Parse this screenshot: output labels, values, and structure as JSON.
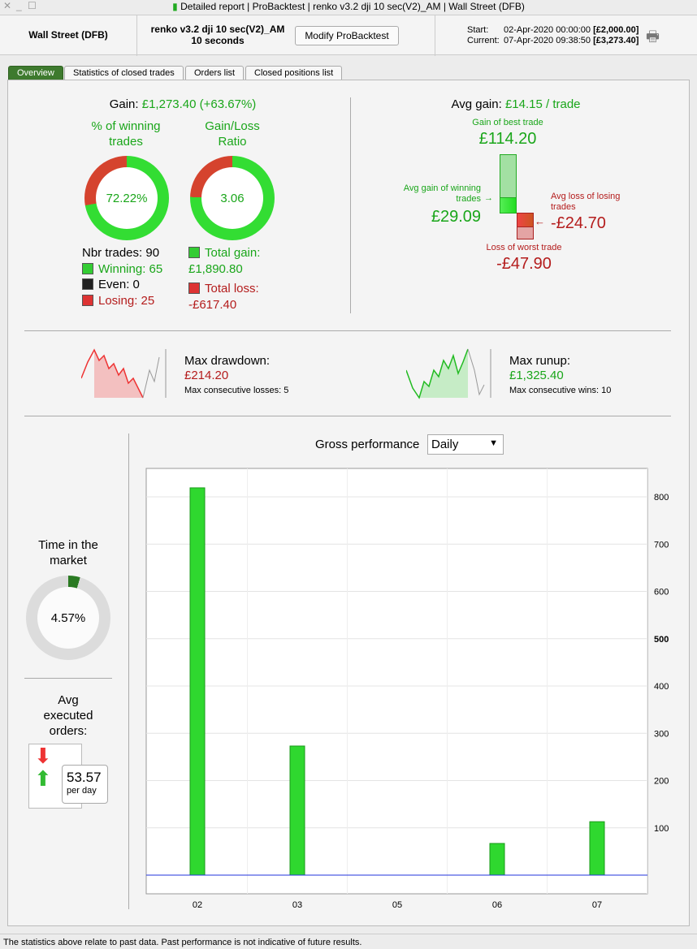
{
  "window": {
    "title": "Detailed report | ProBacktest | renko v3.2 dji 10 sec(V2)_AM | Wall Street (DFB)"
  },
  "header": {
    "instrument": "Wall Street (DFB)",
    "strategy": "renko v3.2 dji 10 sec(V2)_AM",
    "timeframe": "10 seconds",
    "modify_label": "Modify ProBacktest",
    "start_label": "Start:",
    "start_date": "02-Apr-2020 00:00:00",
    "start_value": "[£2,000.00]",
    "current_label": "Current:",
    "current_date": "07-Apr-2020 09:38:50",
    "current_value": "[£3,273.40]"
  },
  "tabs": [
    "Overview",
    "Statistics of closed trades",
    "Orders list",
    "Closed positions list"
  ],
  "gain": {
    "label": "Gain:",
    "value": "£1,273.40 (+63.67%)"
  },
  "winning": {
    "title": "% of winning trades",
    "pct": "72.22%",
    "fraction": 0.7222
  },
  "ratio": {
    "title": "Gain/Loss Ratio",
    "value": "3.06",
    "fraction": 0.754
  },
  "trades": {
    "nbr": "Nbr trades: 90",
    "winning": "Winning: 65",
    "even": "Even: 0",
    "losing": "Losing: 25"
  },
  "totals": {
    "gain_label": "Total gain:",
    "gain": "£1,890.80",
    "loss_label": "Total loss:",
    "loss": "-£617.40"
  },
  "avg": {
    "label": "Avg gain:",
    "value": "£14.15 / trade",
    "best_label": "Gain of best trade",
    "best": "£114.20",
    "avg_win_label": "Avg gain of winning trades",
    "avg_win": "£29.09",
    "avg_loss_label": "Avg loss of losing trades",
    "avg_loss": "-£24.70",
    "worst_label": "Loss of worst trade",
    "worst": "-£47.90"
  },
  "drawdown": {
    "label": "Max drawdown:",
    "value": "£214.20",
    "sub": "Max consecutive losses: 5"
  },
  "runup": {
    "label": "Max runup:",
    "value": "£1,325.40",
    "sub": "Max consecutive wins: 10"
  },
  "time_market": {
    "label": "Time in the market",
    "value": "4.57%",
    "fraction": 0.0457
  },
  "orders": {
    "label": "Avg executed orders:",
    "value": "53.57",
    "unit": "per day"
  },
  "perf": {
    "label": "Gross performance",
    "period": "Daily"
  },
  "chart_data": {
    "type": "bar",
    "title": "Gross performance",
    "categories": [
      "02",
      "03",
      "05",
      "06",
      "07"
    ],
    "values": [
      819,
      273,
      0,
      67,
      113
    ],
    "ylim": [
      0,
      900
    ],
    "yticks": [
      100,
      200,
      300,
      400,
      500,
      600,
      700,
      800
    ]
  },
  "footer": "The statistics above relate to past data. Past performance is not indicative of future results.",
  "colors": {
    "green": "#1aa61a",
    "red": "#b41c1c",
    "tab": "#3e7a2e"
  }
}
